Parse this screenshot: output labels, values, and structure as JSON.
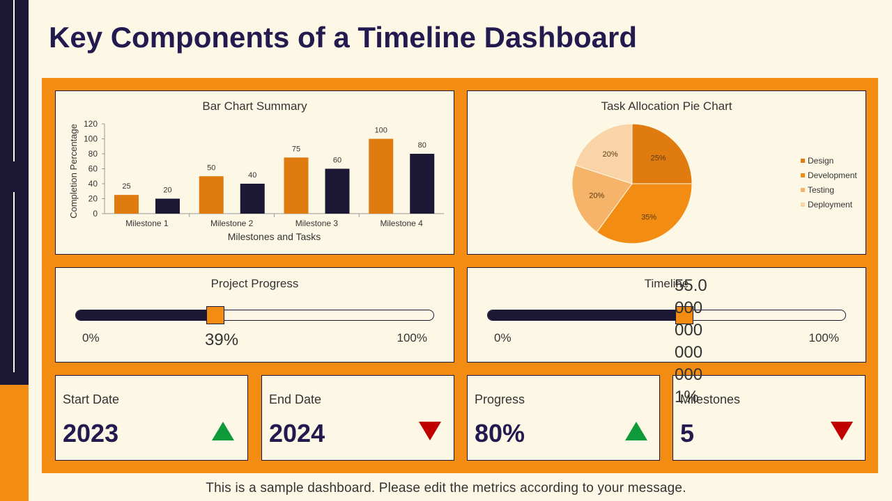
{
  "title": "Key Components of a Timeline Dashboard",
  "footer": "This is a sample dashboard. Please edit the metrics according to your message.",
  "colors": {
    "navy": "#1d1736",
    "orange": "#f28c12",
    "cream": "#fdf8e6",
    "green": "#0f9a3a",
    "red": "#c00000"
  },
  "bar_panel": {
    "title": "Bar Chart Summary"
  },
  "pie_panel": {
    "title": "Task Allocation Pie Chart"
  },
  "progress": {
    "title": "Project Progress",
    "min": "0%",
    "max": "100%",
    "value_label": "39%",
    "value": 0.39
  },
  "timeline": {
    "title": "Timeline",
    "min": "0%",
    "max": "100%",
    "value_label": "55.0 000 000 000 000 1%",
    "value": 0.55
  },
  "kpis": [
    {
      "label": "Start Date",
      "value": "2023",
      "trend": "up",
      "trend_icon": "triangle-up-icon"
    },
    {
      "label": "End Date",
      "value": "2024",
      "trend": "down",
      "trend_icon": "triangle-down-icon"
    },
    {
      "label": "Progress",
      "value": "80%",
      "trend": "up",
      "trend_icon": "triangle-up-icon"
    },
    {
      "label": "Milestones",
      "value": "5",
      "trend": "down",
      "trend_icon": "triangle-down-icon"
    }
  ],
  "chart_data": [
    {
      "type": "bar",
      "title": "Bar Chart Summary",
      "xlabel": "Milestones and Tasks",
      "ylabel": "Completion Percentage",
      "ylim": [
        0,
        120
      ],
      "yticks": [
        0,
        20,
        40,
        60,
        80,
        100,
        120
      ],
      "grid": false,
      "categories": [
        "Milestone 1",
        "Milestone 2",
        "Milestone 3",
        "Milestone 4"
      ],
      "series": [
        {
          "values": [
            25,
            50,
            75,
            100
          ],
          "color": "#e07b10"
        },
        {
          "values": [
            20,
            40,
            60,
            80
          ],
          "color": "#1d1736"
        }
      ]
    },
    {
      "type": "pie",
      "title": "Task Allocation Pie Chart",
      "legend_position": "right",
      "labels": [
        "Design",
        "Development",
        "Testing",
        "Deployment"
      ],
      "values": [
        25,
        35,
        20,
        20
      ],
      "value_labels": [
        "25%",
        "35%",
        "20%",
        "20%"
      ],
      "colors": [
        "#e07b10",
        "#f28c12",
        "#f5b46a",
        "#f8d4a6"
      ]
    }
  ]
}
